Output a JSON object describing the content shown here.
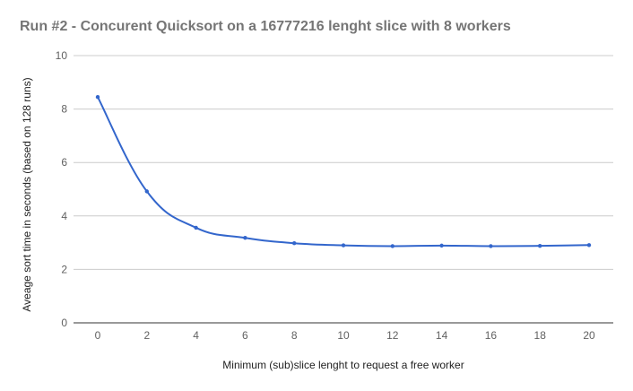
{
  "chart_data": {
    "type": "line",
    "title": "Run #2 - Concurent Quicksort on a 16777216 lenght slice with 8 workers",
    "xlabel": "Minimum (sub)slice lenght to request a free worker",
    "ylabel": "Aveage sort time in seconds (based on 128 runs)",
    "x": [
      0,
      2,
      4,
      6,
      8,
      10,
      12,
      14,
      16,
      18,
      20
    ],
    "xticks": [
      "0",
      "2",
      "4",
      "6",
      "8",
      "10",
      "12",
      "14",
      "16",
      "18",
      "20"
    ],
    "yticks": [
      "0",
      "2",
      "4",
      "6",
      "8",
      "10"
    ],
    "ylim": [
      0,
      10
    ],
    "grid": true,
    "legend": "none",
    "line_color": "#3366cc",
    "series": [
      {
        "values": [
          8.45,
          4.92,
          3.56,
          3.18,
          2.98,
          2.9,
          2.87,
          2.89,
          2.87,
          2.88,
          2.91
        ]
      }
    ]
  }
}
